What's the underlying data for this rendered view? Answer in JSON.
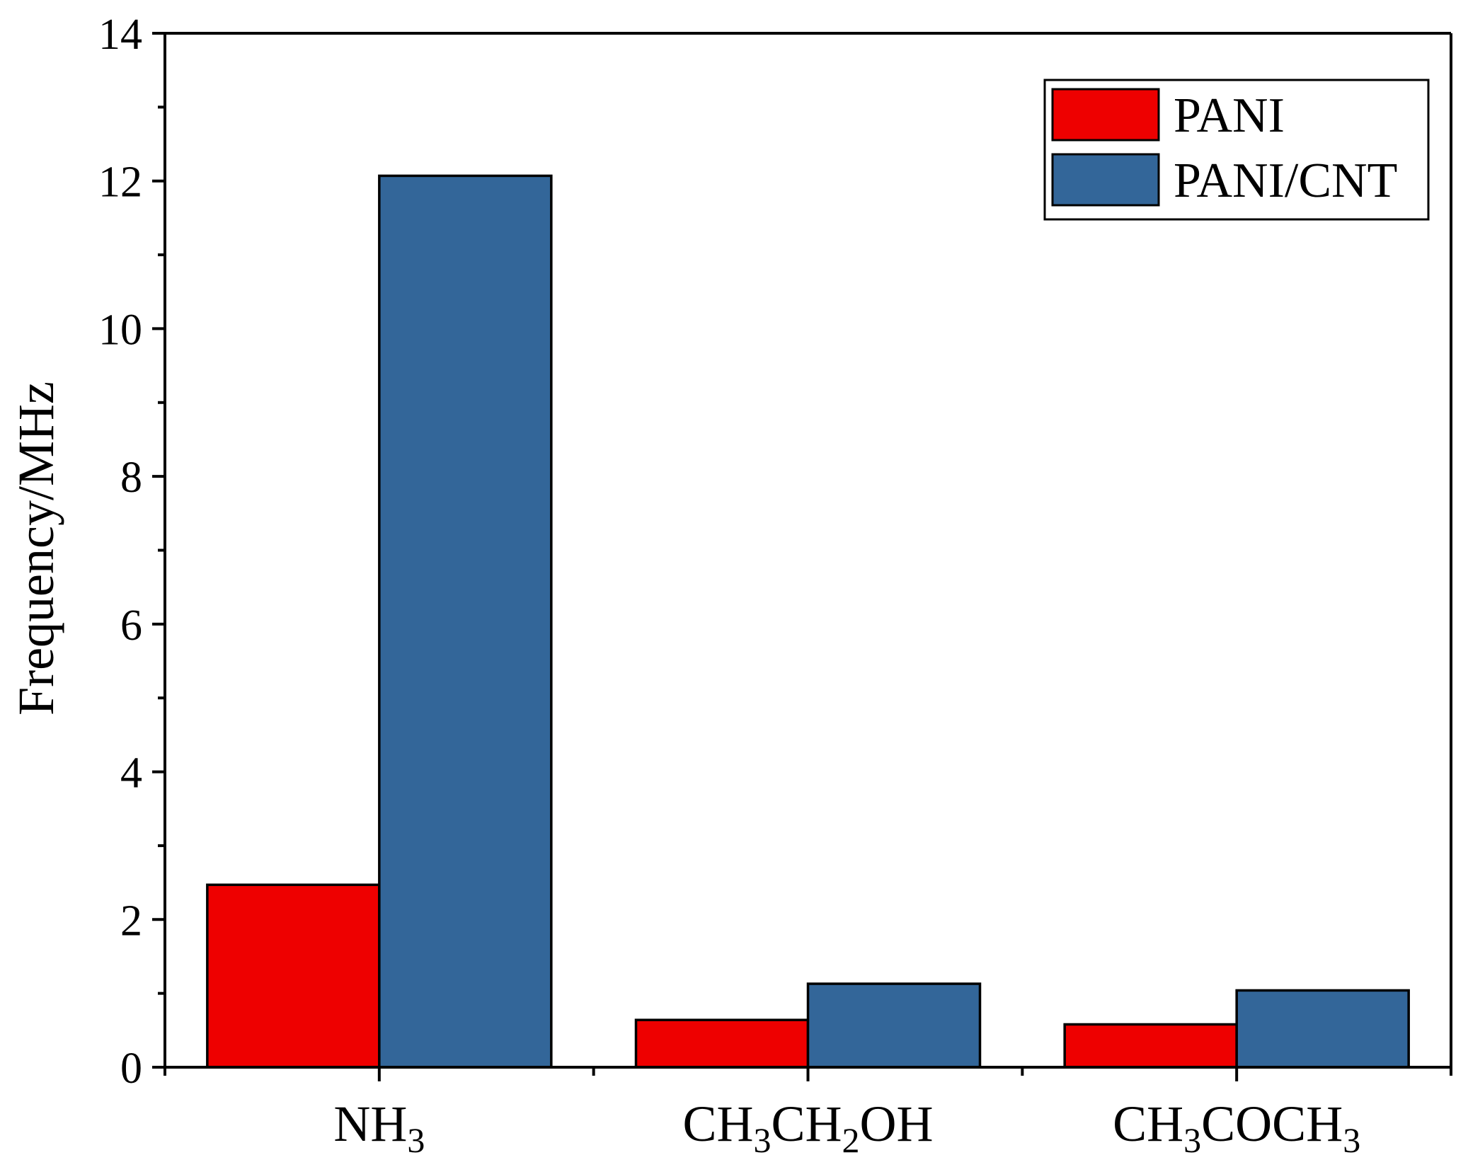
{
  "chart_data": {
    "type": "bar",
    "title": "",
    "xlabel": "",
    "ylabel": "Frequency/MHz",
    "ylim": [
      0,
      14
    ],
    "yticks": [
      0,
      2,
      4,
      6,
      8,
      10,
      12,
      14
    ],
    "grid": false,
    "legend_position": "top-right",
    "categories": [
      {
        "main": "NH",
        "sub": "3"
      },
      {
        "parts": [
          "CH",
          "3",
          "CH",
          "2",
          "OH"
        ]
      },
      {
        "parts": [
          "CH",
          "3",
          "COCH",
          "3"
        ]
      }
    ],
    "series": [
      {
        "name": "PANI",
        "color": "#ee0000",
        "values": [
          2.47,
          0.64,
          0.58
        ]
      },
      {
        "name": "PANI/CNT",
        "color": "#336699",
        "values": [
          12.07,
          1.13,
          1.04
        ]
      }
    ]
  }
}
